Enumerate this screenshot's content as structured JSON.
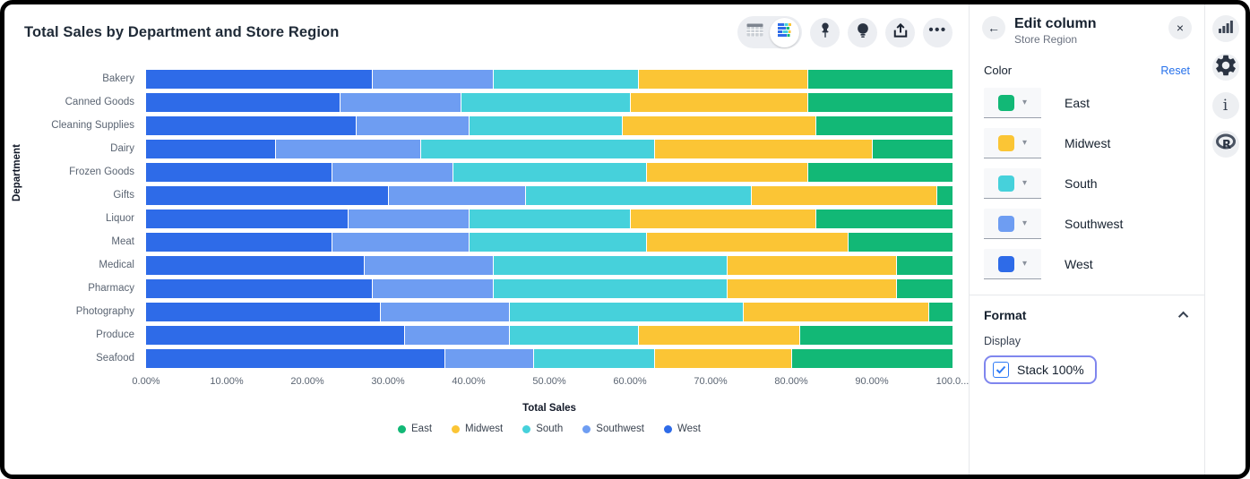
{
  "window": {
    "title": "Total Sales by Department and Store Region"
  },
  "icons": {
    "back": "←",
    "close": "×",
    "caret_down": "▾",
    "ellipsis": "•••",
    "info": "i",
    "r_logo": "R"
  },
  "chart_data": {
    "type": "bar",
    "orientation": "horizontal",
    "stacked": true,
    "stack_100_percent": true,
    "title": "Total Sales by Department and Store Region",
    "xlabel": "Total Sales",
    "ylabel": "Department",
    "xlim": [
      0,
      100
    ],
    "grid": false,
    "legend_position": "bottom",
    "x_ticks": [
      "0.00%",
      "10.00%",
      "20.00%",
      "30.00%",
      "40.00%",
      "50.00%",
      "60.00%",
      "70.00%",
      "80.00%",
      "90.00%",
      "100.0..."
    ],
    "categories": [
      "Bakery",
      "Canned Goods",
      "Cleaning Supplies",
      "Dairy",
      "Frozen Goods",
      "Gifts",
      "Liquor",
      "Meat",
      "Medical",
      "Pharmacy",
      "Photography",
      "Produce",
      "Seafood"
    ],
    "series": [
      {
        "name": "East",
        "color": "#12B876",
        "values": [
          18,
          18,
          17,
          10,
          18,
          2,
          17,
          13,
          7,
          7,
          3,
          19,
          20
        ]
      },
      {
        "name": "Midwest",
        "color": "#FBC535",
        "values": [
          21,
          22,
          24,
          27,
          20,
          23,
          23,
          25,
          21,
          21,
          23,
          20,
          17
        ]
      },
      {
        "name": "South",
        "color": "#46D1DB",
        "values": [
          18,
          21,
          19,
          29,
          24,
          28,
          20,
          22,
          29,
          29,
          29,
          16,
          15
        ]
      },
      {
        "name": "Southwest",
        "color": "#6E9DF2",
        "values": [
          15,
          15,
          14,
          18,
          15,
          17,
          15,
          17,
          16,
          15,
          16,
          13,
          11
        ]
      },
      {
        "name": "West",
        "color": "#2E6BE8",
        "values": [
          28,
          24,
          26,
          16,
          23,
          30,
          25,
          23,
          27,
          28,
          29,
          32,
          37
        ]
      }
    ],
    "stack_order": [
      "West",
      "Southwest",
      "South",
      "Midwest",
      "East"
    ]
  },
  "edit_panel": {
    "title": "Edit column",
    "subtitle": "Store Region",
    "color_section": {
      "label": "Color",
      "reset_label": "Reset",
      "swatches": [
        {
          "name": "East",
          "color": "#12B876"
        },
        {
          "name": "Midwest",
          "color": "#FBC535"
        },
        {
          "name": "South",
          "color": "#46D1DB"
        },
        {
          "name": "Southwest",
          "color": "#6E9DF2"
        },
        {
          "name": "West",
          "color": "#2E6BE8"
        }
      ]
    },
    "format_section": {
      "label": "Format",
      "display_label": "Display",
      "stack_checkbox": {
        "label": "Stack 100%",
        "checked": true
      }
    }
  },
  "colors": {
    "link_blue": "#2570EB",
    "checkbox_blue": "#2F7BF6",
    "focus_ring": "#7F86EE",
    "icon_dark": "#2A3342"
  }
}
